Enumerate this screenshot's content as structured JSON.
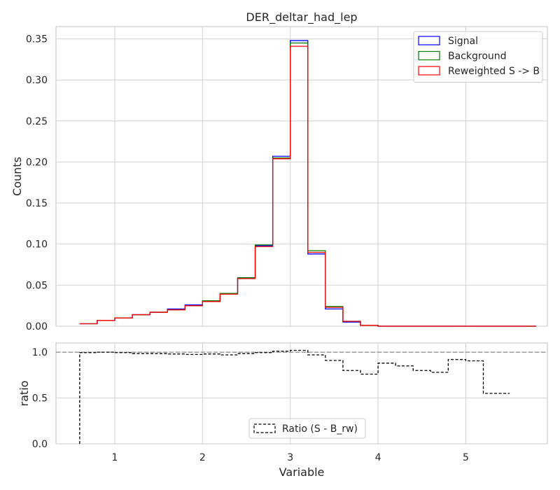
{
  "chart_data": [
    {
      "type": "histogram-step",
      "title": "DER_deltar_had_lep",
      "xlabel": "",
      "ylabel": "Counts",
      "xlim": [
        0.33,
        5.93
      ],
      "ylim": [
        0,
        0.365
      ],
      "yticks": [
        0.0,
        0.05,
        0.1,
        0.15,
        0.2,
        0.25,
        0.3,
        0.35
      ],
      "ytick_labels": [
        "0.00",
        "0.05",
        "0.10",
        "0.15",
        "0.20",
        "0.25",
        "0.30",
        "0.35"
      ],
      "xticks": [
        1,
        2,
        3,
        4,
        5
      ],
      "grid": true,
      "legend_position": "top-right",
      "bin_edges": [
        0.6,
        0.8,
        1.0,
        1.2,
        1.4,
        1.6,
        1.8,
        2.0,
        2.2,
        2.4,
        2.6,
        2.8,
        3.0,
        3.2,
        3.4,
        3.6,
        3.8,
        4.0,
        4.2,
        4.4,
        4.6,
        4.8,
        5.0,
        5.2,
        5.4,
        5.6,
        5.8
      ],
      "series": [
        {
          "name": "Signal",
          "color": "#0000ff",
          "values": [
            0.003,
            0.007,
            0.01,
            0.014,
            0.017,
            0.021,
            0.026,
            0.031,
            0.04,
            0.059,
            0.098,
            0.207,
            0.348,
            0.088,
            0.021,
            0.005,
            0.001,
            0.0,
            0.0,
            0.0,
            0.0,
            0.0,
            0.0,
            0.0,
            0.0,
            0.0
          ]
        },
        {
          "name": "Background",
          "color": "#008000",
          "values": [
            0.003,
            0.007,
            0.01,
            0.014,
            0.017,
            0.02,
            0.025,
            0.031,
            0.04,
            0.059,
            0.099,
            0.205,
            0.345,
            0.092,
            0.024,
            0.006,
            0.001,
            0.0,
            0.0,
            0.0,
            0.0,
            0.0,
            0.0,
            0.0,
            0.0,
            0.0
          ]
        },
        {
          "name": "Reweighted S -> B",
          "color": "#ff0000",
          "values": [
            0.003,
            0.007,
            0.01,
            0.014,
            0.017,
            0.02,
            0.025,
            0.03,
            0.039,
            0.058,
            0.097,
            0.204,
            0.341,
            0.09,
            0.023,
            0.006,
            0.001,
            0.0,
            0.0,
            0.0,
            0.0,
            0.0,
            0.0,
            0.0,
            0.0,
            0.0
          ]
        }
      ]
    },
    {
      "type": "ratio-step",
      "xlabel": "Variable",
      "ylabel": "ratio",
      "xlim": [
        0.33,
        5.93
      ],
      "ylim": [
        0,
        1.1
      ],
      "yticks": [
        0.0,
        0.5,
        1.0
      ],
      "ytick_labels": [
        "0.0",
        "0.5",
        "1.0"
      ],
      "xticks": [
        1,
        2,
        3,
        4,
        5
      ],
      "xtick_labels": [
        "1",
        "2",
        "3",
        "4",
        "5"
      ],
      "reference_line": 1.0,
      "grid": true,
      "legend_position": "bottom-center",
      "series": [
        {
          "name": "Ratio (S - B_rw)",
          "color": "#000000",
          "line_style": "dashed",
          "x_edges": [
            0.6,
            0.8,
            1.0,
            1.2,
            1.4,
            1.6,
            1.8,
            2.0,
            2.2,
            2.4,
            2.6,
            2.8,
            3.0,
            3.2,
            3.4,
            3.6,
            3.8,
            4.0,
            4.2,
            4.4,
            4.6,
            4.8,
            5.0,
            5.2,
            5.4,
            5.5
          ],
          "values": [
            0.995,
            1.0,
            0.995,
            0.985,
            0.985,
            0.98,
            0.975,
            0.98,
            0.97,
            0.985,
            0.995,
            1.01,
            1.02,
            0.97,
            0.91,
            0.8,
            0.76,
            0.88,
            0.85,
            0.8,
            0.78,
            0.92,
            0.905,
            0.55,
            0.55
          ]
        }
      ]
    }
  ]
}
